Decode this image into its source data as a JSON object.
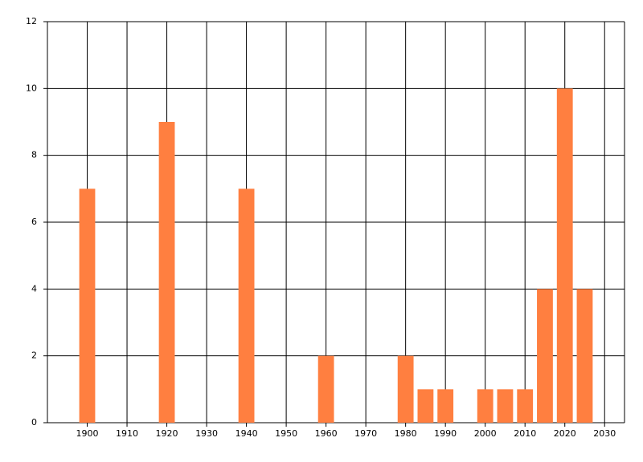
{
  "chart_data": {
    "type": "bar",
    "x": [
      1900,
      1920,
      1940,
      1960,
      1980,
      1985,
      1990,
      2000,
      2005,
      2010,
      2015,
      2020,
      2025
    ],
    "values": [
      7,
      9,
      7,
      2,
      2,
      1,
      1,
      1,
      1,
      1,
      4,
      10,
      4
    ],
    "color": "#ff7f40",
    "xlim": [
      1890,
      2035
    ],
    "xticks": [
      1900,
      1910,
      1920,
      1930,
      1940,
      1950,
      1960,
      1970,
      1980,
      1990,
      2000,
      2010,
      2020,
      2030
    ],
    "ylim": [
      0,
      12
    ],
    "yticks": [
      0,
      2,
      4,
      6,
      8,
      10,
      12
    ],
    "grid": true
  }
}
